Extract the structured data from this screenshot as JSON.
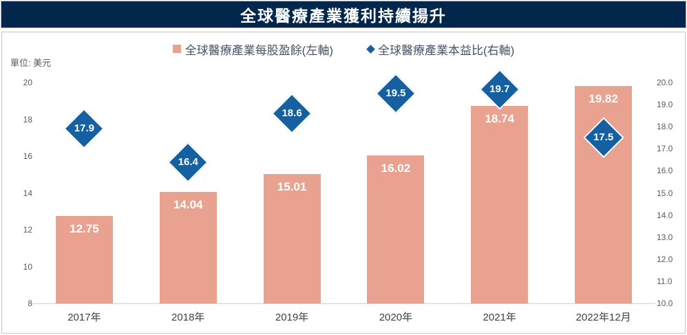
{
  "header": {
    "title": "全球醫療產業獲利持續揚升"
  },
  "unit_label": "單位: 美元",
  "legend": {
    "items": [
      {
        "label": "全球醫療產業每股盈餘(左軸)",
        "marker": "square"
      },
      {
        "label": "全球醫療產業本益比(右軸)",
        "marker": "diamond"
      }
    ]
  },
  "colors": {
    "banner_bg": "#03264c",
    "bar": "#e9a28f",
    "diamond": "#1560a0",
    "legend_text": "#44546a",
    "axis_text": "#595959",
    "xlabel_text": "#404040",
    "axis_line": "#d0d0d0"
  },
  "chart_data": {
    "type": "bar",
    "title": "全球醫療產業獲利持續揚升",
    "subtitle": "",
    "categories": [
      "2017年",
      "2018年",
      "2019年",
      "2020年",
      "2021年",
      "2022年12月"
    ],
    "series": [
      {
        "name": "全球醫療產業每股盈餘(左軸)",
        "type": "bar",
        "axis": "left",
        "color": "#e9a28f",
        "values": [
          12.75,
          14.04,
          15.01,
          16.02,
          18.74,
          19.82
        ],
        "label_decimals": 2
      },
      {
        "name": "全球醫療產業本益比(右軸)",
        "type": "scatter",
        "marker": "diamond",
        "axis": "right",
        "color": "#1560a0",
        "values": [
          17.9,
          16.4,
          18.6,
          19.5,
          19.7,
          17.5
        ],
        "label_decimals": 1
      }
    ],
    "left_axis": {
      "label": "單位: 美元",
      "min": 8,
      "max": 20,
      "ticks": [
        8,
        10,
        12,
        14,
        16,
        18,
        20
      ],
      "tick_decimals": 0
    },
    "right_axis": {
      "min": 10,
      "max": 20,
      "ticks": [
        10,
        11,
        12,
        13,
        14,
        15,
        16,
        17,
        18,
        19,
        20
      ],
      "tick_decimals": 1
    },
    "grid": false,
    "legend_position": "top-center"
  }
}
